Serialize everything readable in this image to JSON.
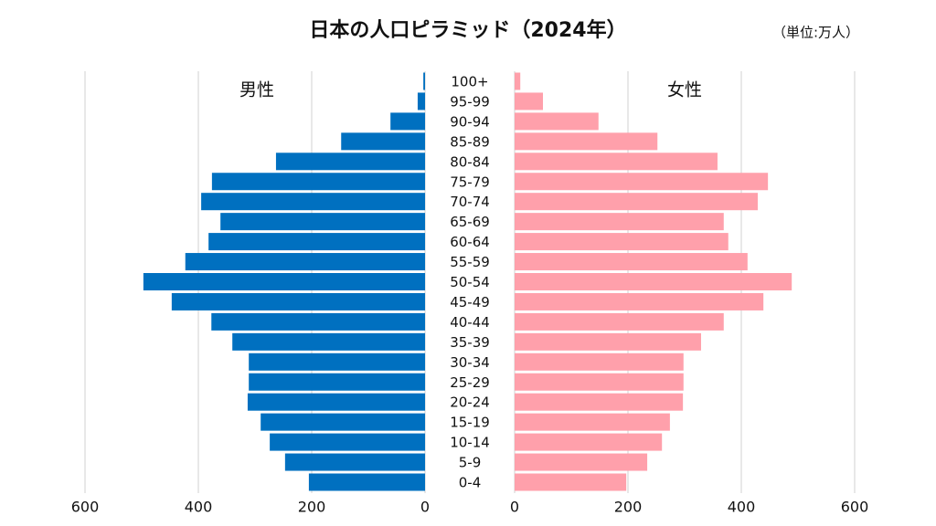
{
  "chart_data": {
    "type": "pyramid",
    "title": "日本の人口ピラミッド（2024年）",
    "unit_label": "（単位:万人）",
    "categories": [
      "100+",
      "95-99",
      "90-94",
      "85-89",
      "80-84",
      "75-79",
      "70-74",
      "65-69",
      "60-64",
      "55-59",
      "50-54",
      "45-49",
      "40-44",
      "35-39",
      "30-34",
      "25-29",
      "20-24",
      "15-19",
      "10-14",
      "5-9",
      "0-4"
    ],
    "series": [
      {
        "name": "男性",
        "color": "#0070c0",
        "side": "left",
        "values": [
          3,
          13,
          61,
          148,
          263,
          376,
          395,
          361,
          382,
          423,
          497,
          447,
          377,
          340,
          311,
          311,
          313,
          290,
          274,
          247,
          205
        ]
      },
      {
        "name": "女性",
        "color": "#ffa0ab",
        "side": "right",
        "values": [
          10,
          50,
          148,
          252,
          358,
          447,
          429,
          369,
          377,
          411,
          489,
          439,
          369,
          329,
          298,
          298,
          297,
          274,
          260,
          234,
          197
        ]
      }
    ],
    "xlim": [
      0,
      600
    ],
    "xticks": [
      0,
      200,
      400,
      600
    ],
    "grid": true
  }
}
